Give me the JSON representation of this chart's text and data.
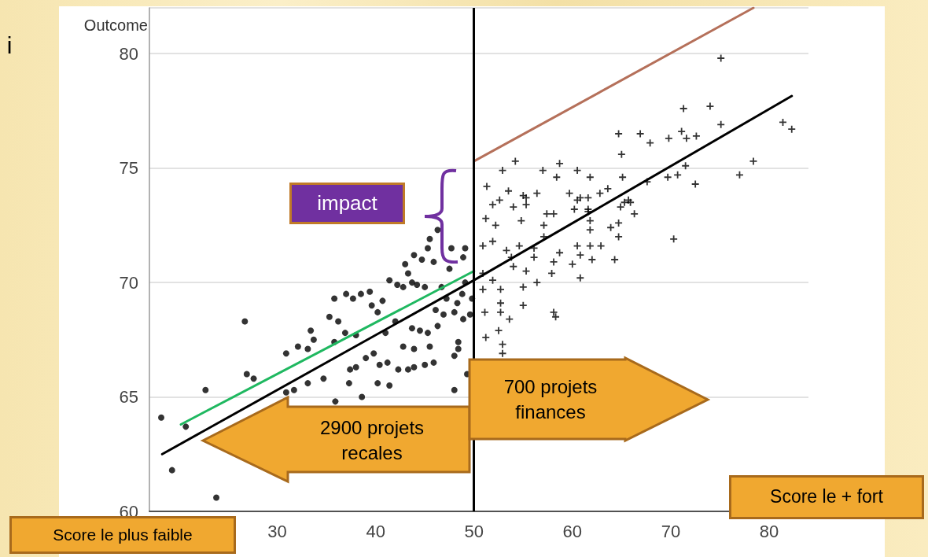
{
  "chart_data": {
    "type": "scatter",
    "ylabel": "Outcome",
    "xlim": [
      17,
      84
    ],
    "ylim": [
      60,
      82
    ],
    "xticks": [
      30,
      40,
      50,
      60,
      70,
      80
    ],
    "yticks": [
      60,
      65,
      70,
      75,
      80
    ],
    "grid": "y",
    "series": [
      {
        "marker": "circle",
        "color": "#000000",
        "x": [
          18.2,
          19.3,
          23.8,
          22.7,
          20.7,
          26.7,
          26.9,
          27.6,
          30.9,
          32.1,
          33.1,
          33.4,
          33.7,
          35.3,
          36.2,
          35.8,
          37.0,
          37.7,
          38.5,
          39.4,
          39.6,
          40.2,
          40.7,
          41.4,
          42.2,
          42.8,
          43.7,
          44.2,
          45.0,
          43.0,
          43.3,
          45.5,
          45.3,
          46.3,
          45.9,
          44.7,
          43.9,
          47.7,
          49.1,
          48.9,
          47.5,
          39.0,
          39.8,
          40.4,
          41.2,
          38.0,
          37.4,
          42.3,
          43.3,
          43.9,
          45.0,
          45.9,
          40.2,
          41.4,
          38.6,
          37.3,
          35.9,
          48.0,
          49.3,
          48.4,
          48.4,
          48.0,
          44.5,
          45.3,
          46.3,
          46.9,
          46.1,
          48.0,
          48.9,
          49.6,
          42.8,
          43.9,
          45.5,
          43.7,
          42.0,
          41.0,
          38.0,
          36.9,
          35.8,
          34.7,
          33.1,
          31.7,
          30.9,
          49.1,
          48.8,
          48.3,
          49.8,
          46.7,
          47.2
        ],
        "values": [
          64.1,
          61.8,
          60.6,
          65.3,
          63.7,
          68.3,
          66.0,
          65.8,
          66.9,
          67.2,
          67.1,
          67.9,
          67.5,
          68.5,
          68.3,
          69.3,
          69.5,
          69.3,
          69.5,
          69.6,
          69.0,
          68.7,
          69.2,
          70.1,
          69.9,
          69.8,
          70.0,
          69.9,
          69.8,
          70.8,
          70.4,
          71.9,
          71.5,
          72.3,
          70.9,
          71.0,
          71.2,
          71.5,
          71.5,
          71.1,
          70.6,
          66.7,
          66.9,
          66.4,
          66.5,
          66.3,
          66.2,
          66.2,
          66.2,
          66.3,
          66.4,
          66.5,
          65.6,
          65.5,
          65.0,
          65.6,
          64.8,
          65.3,
          66.0,
          67.4,
          67.1,
          66.8,
          67.9,
          67.8,
          68.1,
          68.6,
          68.8,
          68.7,
          68.4,
          68.6,
          67.2,
          67.1,
          67.2,
          68.0,
          68.3,
          67.8,
          67.7,
          67.8,
          67.4,
          65.8,
          65.6,
          65.3,
          65.2,
          70.0,
          69.5,
          69.1,
          69.3,
          69.8,
          69.3
        ]
      },
      {
        "marker": "cross",
        "color": "#000000",
        "x": [
          75.1,
          71.3,
          74.0,
          75.1,
          81.4,
          82.3,
          64.7,
          66.9,
          67.9,
          69.8,
          71.1,
          71.6,
          72.6,
          65.0,
          78.4,
          77.0,
          72.5,
          71.5,
          70.7,
          69.7,
          67.6,
          54.2,
          52.9,
          57.0,
          58.7,
          60.5,
          61.8,
          58.4,
          51.3,
          53.5,
          55.3,
          56.4,
          59.7,
          62.8,
          63.6,
          65.1,
          65.3,
          65.9,
          60.8,
          61.6,
          51.9,
          54.0,
          55.3,
          57.4,
          58.1,
          60.2,
          61.6,
          64.9,
          66.3,
          54.8,
          51.2,
          52.2,
          57.1,
          61.8,
          61.8,
          64.7,
          63.9,
          70.3,
          50.9,
          51.9,
          53.3,
          54.6,
          56.1,
          57.1,
          60.5,
          61.8,
          62.9,
          64.7,
          58.7,
          60.8,
          62.0,
          64.3,
          58.1,
          60.0,
          57.9,
          60.8,
          53.8,
          56.1,
          54.0,
          55.3,
          56.4,
          50.9,
          51.9,
          52.7,
          50.9,
          55.0,
          55.0,
          52.7,
          52.7,
          51.1,
          53.6,
          52.5,
          51.2,
          52.9,
          52.9,
          58.1,
          58.3,
          52.6,
          55.0,
          60.5,
          61.6,
          65.7
        ],
        "values": [
          79.8,
          77.6,
          77.7,
          76.9,
          77.0,
          76.7,
          76.5,
          76.5,
          76.1,
          76.3,
          76.6,
          76.3,
          76.4,
          75.6,
          75.3,
          74.7,
          74.3,
          75.1,
          74.7,
          74.6,
          74.4,
          75.3,
          74.9,
          74.9,
          75.2,
          74.9,
          74.6,
          74.6,
          74.2,
          74.0,
          73.7,
          73.9,
          73.9,
          73.9,
          74.1,
          74.6,
          73.5,
          73.5,
          73.7,
          73.7,
          73.4,
          73.3,
          73.4,
          73.0,
          73.0,
          73.2,
          73.1,
          73.3,
          73.0,
          72.7,
          72.8,
          72.5,
          72.5,
          72.7,
          72.3,
          72.6,
          72.4,
          71.9,
          71.6,
          71.8,
          71.4,
          71.6,
          71.5,
          72.0,
          71.6,
          71.6,
          71.6,
          72.0,
          71.3,
          71.2,
          71.0,
          71.0,
          70.9,
          70.8,
          70.4,
          70.2,
          71.1,
          71.1,
          70.7,
          70.5,
          70.0,
          70.4,
          70.1,
          69.7,
          69.7,
          69.8,
          69.0,
          69.1,
          68.7,
          68.7,
          68.4,
          67.9,
          67.6,
          67.3,
          66.9,
          68.7,
          68.5,
          73.6,
          73.8,
          73.6,
          73.2,
          73.6
        ]
      },
      {
        "type": "line",
        "marker": "none",
        "color": "#000000",
        "x": [
          18.3,
          50,
          82.3
        ],
        "values": [
          62.5,
          70.1,
          78.15
        ]
      },
      {
        "type": "line",
        "marker": "none",
        "color": "#1fb860",
        "x": [
          20.2,
          50
        ],
        "values": [
          63.8,
          70.5
        ]
      },
      {
        "type": "line",
        "marker": "none",
        "color": "#b5705a",
        "x": [
          50,
          78.4
        ],
        "values": [
          75.3,
          82.0
        ]
      }
    ],
    "ref_lines": [
      {
        "axis": "x",
        "value": 50,
        "color": "#000000"
      }
    ],
    "annotations": [
      "i",
      "impact",
      "2900 projets recales",
      "700 projets finances",
      "Score le plus faible",
      "Score le + fort"
    ]
  }
}
